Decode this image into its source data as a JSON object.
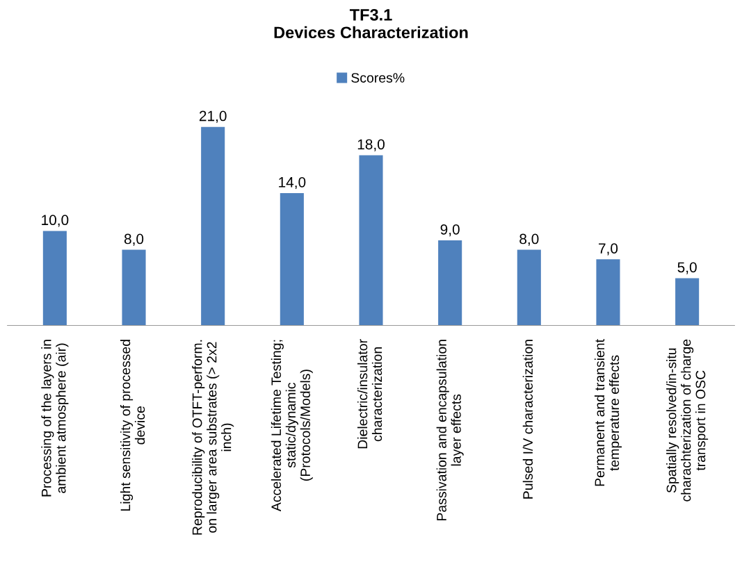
{
  "chart_data": {
    "type": "bar",
    "title": "TF3.1\nDevices Characterization",
    "categories": [
      "Processing of the layers in\nambient atmosphere (air)",
      "Light sensitivity of processed\ndevice",
      "Reproducibility of OTFT-perform.\non larger area substrates (> 2x2\ninch)",
      "Accelerated Lifetime Testing;\nstatic/dynamic\n(Protocols/Models)",
      "Dielectric/insulator\ncharacterization",
      "Passivation and encapsulation\nlayer effects",
      "Pulsed I/V characterization",
      "Permanent and transient\ntemperature effects",
      "Spatially resolved/in-situ\ncharachterization of charge\ntransport in OSC"
    ],
    "series": [
      {
        "name": "Scores%",
        "color": "#4f81bd",
        "values": [
          10,
          8,
          21,
          14,
          18,
          9,
          8,
          7,
          5
        ],
        "value_labels": [
          "10,0",
          "8,0",
          "21,0",
          "14,0",
          "18,0",
          "9,0",
          "8,0",
          "7,0",
          "5,0"
        ]
      }
    ],
    "legend": "top",
    "grid": false
  }
}
